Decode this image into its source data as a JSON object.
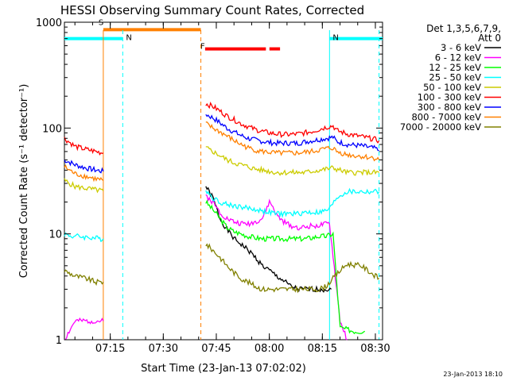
{
  "chart_data": {
    "type": "line",
    "title": "HESSI Observing Summary Count Rates, Corrected",
    "xlabel": "Start Time (23-Jan-13 07:02:02)",
    "ylabel": "Corrected Count Rate (s⁻¹ detector⁻¹)",
    "yscale": "log",
    "ylim": [
      1,
      1000
    ],
    "xlim_minutes": [
      0,
      90
    ],
    "xticks": [
      {
        "label": "07:15",
        "min": 12.97
      },
      {
        "label": "07:30",
        "min": 27.97
      },
      {
        "label": "07:45",
        "min": 42.97
      },
      {
        "label": "08:00",
        "min": 57.97
      },
      {
        "label": "08:15",
        "min": 72.97
      },
      {
        "label": "08:30",
        "min": 87.97
      }
    ],
    "yticks": [
      {
        "label": "1",
        "value": 1
      },
      {
        "label": "10",
        "value": 10
      },
      {
        "label": "100",
        "value": 100
      },
      {
        "label": "1000",
        "value": 1000
      }
    ],
    "legend_header": [
      "Det 1,3,5,6,7,9,",
      "Att 0"
    ],
    "footer": "23-Jan-2013 18:10",
    "flags": [
      {
        "label": "S",
        "color": "#ff8000",
        "start": 11.0,
        "end": 38.6,
        "y": 850
      },
      {
        "label": "N",
        "color": "#00ffff",
        "start": 0,
        "end": 16.5,
        "y": 700
      },
      {
        "label": "N",
        "color": "#00ffff",
        "start": 75.0,
        "end": 90,
        "y": 700
      },
      {
        "label": "F",
        "color": "#ff0000",
        "start": 39.8,
        "end": 57.0,
        "y": 560
      },
      {
        "label": "",
        "color": "#ff0000",
        "start": 58.0,
        "end": 61.0,
        "y": 560
      }
    ],
    "vlines": [
      {
        "min": 11.0,
        "color": "#ff8000",
        "style": "solid"
      },
      {
        "min": 16.5,
        "color": "#00ffff",
        "style": "dashed"
      },
      {
        "min": 38.6,
        "color": "#ff8000",
        "style": "dashed"
      },
      {
        "min": 75.0,
        "color": "#00ffff",
        "style": "solid"
      },
      {
        "min": 89.0,
        "color": "#00ffff",
        "style": "dashed"
      }
    ],
    "series": [
      {
        "name": "3 - 6 keV",
        "color": "#000000",
        "points": [
          [
            0,
            4.5
          ],
          [
            11,
            4.5
          ],
          [
            40,
            28
          ],
          [
            42,
            22
          ],
          [
            44,
            14
          ],
          [
            46,
            11
          ],
          [
            48,
            9
          ],
          [
            50,
            8
          ],
          [
            52,
            7
          ],
          [
            54,
            6
          ],
          [
            56,
            5
          ],
          [
            58,
            4.5
          ],
          [
            60,
            4
          ],
          [
            62,
            3.6
          ],
          [
            64,
            3.2
          ],
          [
            66,
            3.0
          ],
          [
            68,
            3.0
          ],
          [
            70,
            3.0
          ],
          [
            72,
            3.0
          ],
          [
            74,
            3.0
          ],
          [
            75.5,
            3.0
          ]
        ]
      },
      {
        "name": "6 - 12 keV",
        "color": "#ff00ff",
        "points": [
          [
            0,
            1
          ],
          [
            3,
            1.5
          ],
          [
            11,
            1.5
          ],
          [
            40,
            23
          ],
          [
            42,
            20
          ],
          [
            44,
            16
          ],
          [
            46,
            14
          ],
          [
            48,
            13
          ],
          [
            50,
            12.5
          ],
          [
            52,
            12.5
          ],
          [
            54,
            13
          ],
          [
            56,
            14
          ],
          [
            58,
            20
          ],
          [
            59,
            18
          ],
          [
            60,
            15
          ],
          [
            62,
            13
          ],
          [
            64,
            12
          ],
          [
            66,
            11.5
          ],
          [
            68,
            11.5
          ],
          [
            70,
            12
          ],
          [
            72,
            12
          ],
          [
            75,
            12.5
          ],
          [
            78,
            1.5
          ],
          [
            80,
            1
          ]
        ]
      },
      {
        "name": "12 - 25 keV",
        "color": "#00ff00",
        "points": [
          [
            0,
            1
          ],
          [
            11,
            1
          ],
          [
            40,
            20
          ],
          [
            42,
            17
          ],
          [
            44,
            14
          ],
          [
            46,
            11.5
          ],
          [
            48,
            10.5
          ],
          [
            50,
            10
          ],
          [
            52,
            9.5
          ],
          [
            54,
            9.2
          ],
          [
            56,
            9
          ],
          [
            58,
            9
          ],
          [
            60,
            9
          ],
          [
            62,
            9
          ],
          [
            64,
            9
          ],
          [
            66,
            9
          ],
          [
            68,
            9
          ],
          [
            70,
            9.2
          ],
          [
            72,
            9.5
          ],
          [
            74,
            9.5
          ],
          [
            76,
            10
          ],
          [
            78,
            1.3
          ],
          [
            82,
            1.2
          ],
          [
            85,
            1.2
          ]
        ]
      },
      {
        "name": "25 - 50 keV",
        "color": "#00ffff",
        "points": [
          [
            0,
            10
          ],
          [
            2,
            9.5
          ],
          [
            4,
            9.5
          ],
          [
            6,
            9.3
          ],
          [
            8,
            9.2
          ],
          [
            10,
            9
          ],
          [
            11,
            9
          ],
          [
            40,
            26
          ],
          [
            42,
            22
          ],
          [
            44,
            20
          ],
          [
            46,
            19
          ],
          [
            48,
            18.5
          ],
          [
            50,
            18
          ],
          [
            52,
            17.5
          ],
          [
            54,
            17
          ],
          [
            56,
            16.5
          ],
          [
            58,
            16
          ],
          [
            60,
            15.5
          ],
          [
            62,
            15.5
          ],
          [
            64,
            15.5
          ],
          [
            66,
            15.5
          ],
          [
            68,
            16
          ],
          [
            70,
            16
          ],
          [
            72,
            16
          ],
          [
            74,
            16.5
          ],
          [
            75.5,
            18
          ],
          [
            77,
            22
          ],
          [
            80,
            25
          ],
          [
            84,
            25
          ],
          [
            88,
            25
          ],
          [
            89,
            25
          ]
        ]
      },
      {
        "name": "50 - 100 keV",
        "color": "#cccc00",
        "points": [
          [
            0,
            32
          ],
          [
            3,
            28
          ],
          [
            6,
            27
          ],
          [
            9,
            26
          ],
          [
            11,
            25.5
          ],
          [
            40,
            65
          ],
          [
            42,
            60
          ],
          [
            44,
            55
          ],
          [
            46,
            50
          ],
          [
            48,
            47
          ],
          [
            50,
            45
          ],
          [
            52,
            43
          ],
          [
            54,
            41
          ],
          [
            56,
            40
          ],
          [
            58,
            39
          ],
          [
            60,
            38
          ],
          [
            62,
            38
          ],
          [
            64,
            38
          ],
          [
            66,
            38
          ],
          [
            68,
            38
          ],
          [
            70,
            39
          ],
          [
            72,
            40
          ],
          [
            74,
            41
          ],
          [
            76,
            42
          ],
          [
            78,
            40
          ],
          [
            80,
            38
          ],
          [
            84,
            38
          ],
          [
            88,
            38
          ],
          [
            89,
            38
          ]
        ]
      },
      {
        "name": "100 - 300 keV",
        "color": "#ff0000",
        "points": [
          [
            0,
            80
          ],
          [
            3,
            67
          ],
          [
            6,
            63
          ],
          [
            9,
            60
          ],
          [
            11,
            58
          ],
          [
            40,
            170
          ],
          [
            42,
            160
          ],
          [
            44,
            145
          ],
          [
            46,
            130
          ],
          [
            48,
            120
          ],
          [
            50,
            110
          ],
          [
            52,
            103
          ],
          [
            54,
            97
          ],
          [
            56,
            93
          ],
          [
            58,
            90
          ],
          [
            60,
            88
          ],
          [
            62,
            87
          ],
          [
            64,
            87
          ],
          [
            66,
            88
          ],
          [
            68,
            90
          ],
          [
            70,
            93
          ],
          [
            72,
            97
          ],
          [
            74,
            102
          ],
          [
            76,
            105
          ],
          [
            77,
            95
          ],
          [
            80,
            88
          ],
          [
            84,
            83
          ],
          [
            88,
            78
          ],
          [
            89,
            76
          ]
        ]
      },
      {
        "name": "300 - 800 keV",
        "color": "#0000ff",
        "points": [
          [
            0,
            50
          ],
          [
            3,
            45
          ],
          [
            6,
            42
          ],
          [
            9,
            40
          ],
          [
            11,
            39
          ],
          [
            40,
            135
          ],
          [
            42,
            125
          ],
          [
            44,
            112
          ],
          [
            46,
            100
          ],
          [
            48,
            92
          ],
          [
            50,
            85
          ],
          [
            52,
            80
          ],
          [
            54,
            77
          ],
          [
            56,
            75
          ],
          [
            58,
            73
          ],
          [
            60,
            72
          ],
          [
            62,
            72
          ],
          [
            64,
            72
          ],
          [
            66,
            72
          ],
          [
            68,
            74
          ],
          [
            70,
            76
          ],
          [
            72,
            78
          ],
          [
            74,
            80
          ],
          [
            76,
            82
          ],
          [
            77,
            75
          ],
          [
            80,
            70
          ],
          [
            84,
            68
          ],
          [
            88,
            64
          ],
          [
            89,
            61
          ]
        ]
      },
      {
        "name": "800 - 7000 keV",
        "color": "#ff8000",
        "points": [
          [
            0,
            43
          ],
          [
            3,
            37
          ],
          [
            6,
            35
          ],
          [
            9,
            33
          ],
          [
            11,
            32
          ],
          [
            40,
            110
          ],
          [
            42,
            100
          ],
          [
            44,
            92
          ],
          [
            46,
            84
          ],
          [
            48,
            76
          ],
          [
            50,
            70
          ],
          [
            52,
            65
          ],
          [
            54,
            62
          ],
          [
            56,
            60
          ],
          [
            58,
            59
          ],
          [
            60,
            58
          ],
          [
            62,
            58
          ],
          [
            64,
            58
          ],
          [
            66,
            58
          ],
          [
            68,
            59
          ],
          [
            70,
            60
          ],
          [
            72,
            62
          ],
          [
            74,
            64
          ],
          [
            76,
            65
          ],
          [
            77,
            60
          ],
          [
            80,
            56
          ],
          [
            84,
            54
          ],
          [
            88,
            52
          ],
          [
            89,
            50
          ]
        ]
      },
      {
        "name": "7000 - 20000 keV",
        "color": "#808000",
        "points": [
          [
            0,
            4.5
          ],
          [
            3,
            4
          ],
          [
            6,
            3.8
          ],
          [
            9,
            3.5
          ],
          [
            11,
            3.5
          ],
          [
            40,
            8
          ],
          [
            42,
            7
          ],
          [
            44,
            6
          ],
          [
            46,
            5
          ],
          [
            48,
            4.3
          ],
          [
            50,
            3.8
          ],
          [
            52,
            3.5
          ],
          [
            54,
            3.2
          ],
          [
            56,
            3.0
          ],
          [
            58,
            3.0
          ],
          [
            60,
            3.0
          ],
          [
            62,
            3.0
          ],
          [
            64,
            3.0
          ],
          [
            66,
            3.0
          ],
          [
            68,
            3.0
          ],
          [
            70,
            3.0
          ],
          [
            72,
            3.0
          ],
          [
            74,
            3.2
          ],
          [
            76,
            3.8
          ],
          [
            78,
            4.5
          ],
          [
            80,
            5.2
          ],
          [
            84,
            5.0
          ],
          [
            88,
            4.0
          ],
          [
            89,
            3.8
          ]
        ]
      }
    ]
  }
}
